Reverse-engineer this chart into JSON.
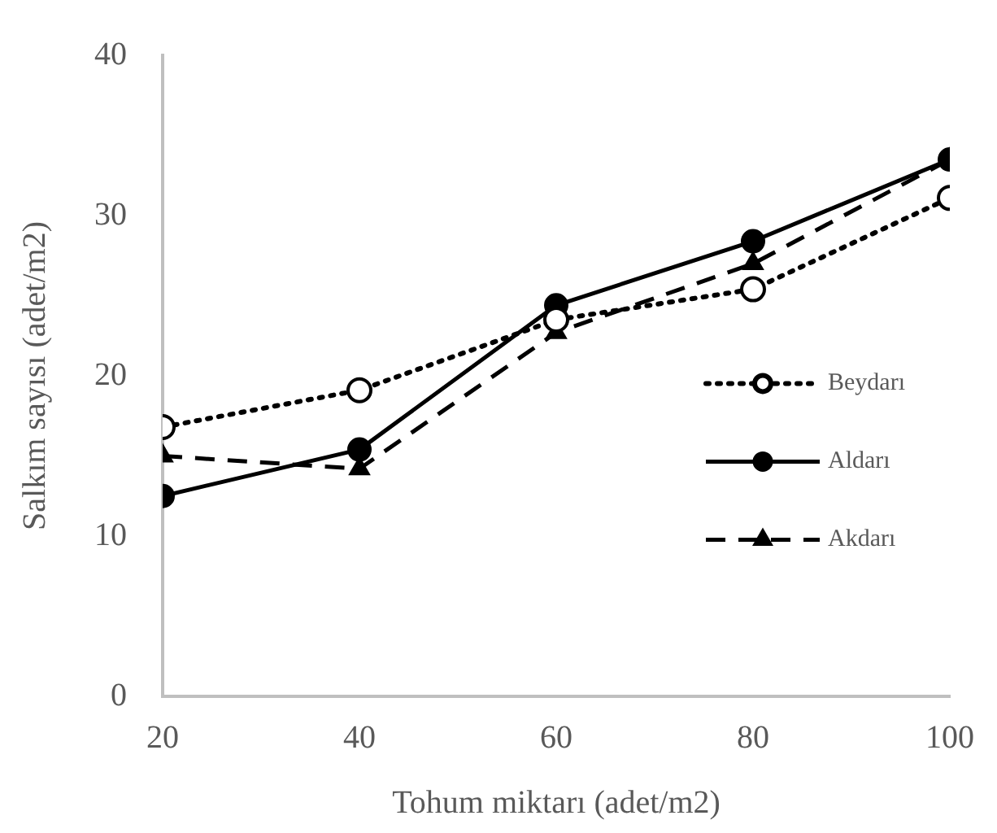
{
  "chart_data": {
    "type": "line",
    "xlabel": "Tohum miktarı (adet/m2)",
    "ylabel": "Salkım sayısı (adet/m2)",
    "x": [
      20,
      40,
      60,
      80,
      100
    ],
    "xlim": [
      20,
      100
    ],
    "xticks": [
      20,
      40,
      60,
      80,
      100
    ],
    "ylim": [
      0,
      40
    ],
    "yticks": [
      0,
      10,
      20,
      30,
      40
    ],
    "grid": false,
    "legend": "right",
    "series": [
      {
        "name": "Beydarı",
        "color": "#000000",
        "marker": "circle",
        "line_style": "dotted",
        "values": [
          16.8,
          19.1,
          23.5,
          25.4,
          31.1
        ]
      },
      {
        "name": "Aldarı",
        "color": "#000000",
        "marker": "circle",
        "line_style": "solid",
        "values": [
          12.5,
          15.4,
          24.4,
          28.4,
          33.5
        ]
      },
      {
        "name": "Akdarı",
        "color": "#000000",
        "marker": "triangle",
        "line_style": "dashed",
        "values": [
          15.0,
          14.2,
          22.7,
          27.0,
          33.5
        ]
      }
    ]
  }
}
